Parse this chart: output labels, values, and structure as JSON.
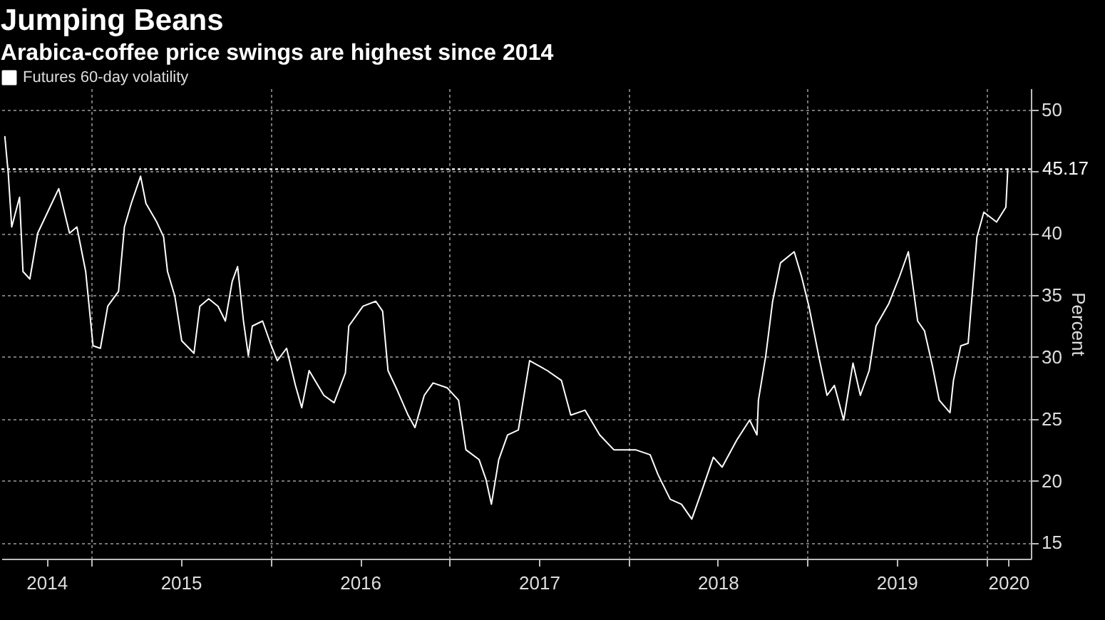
{
  "chart_data": {
    "type": "line",
    "title": "Jumping Beans",
    "subtitle": "Arabica-coffee price swings are highest since 2014",
    "ylabel": "Percent",
    "x": [
      "2014-07-08",
      "2014-07-15",
      "2014-07-22",
      "2014-08-07",
      "2014-08-14",
      "2014-08-28",
      "2014-09-13",
      "2014-10-08",
      "2014-10-26",
      "2014-11-17",
      "2014-12-02",
      "2014-12-20",
      "2015-01-04",
      "2015-01-19",
      "2015-02-03",
      "2015-02-25",
      "2015-03-09",
      "2015-03-23",
      "2015-04-11",
      "2015-04-22",
      "2015-05-14",
      "2015-05-28",
      "2015-06-05",
      "2015-06-20",
      "2015-07-04",
      "2015-07-29",
      "2015-08-10",
      "2015-08-28",
      "2015-09-16",
      "2015-10-01",
      "2015-10-15",
      "2015-10-26",
      "2015-11-07",
      "2015-11-17",
      "2015-11-25",
      "2015-12-16",
      "2016-01-01",
      "2016-01-15",
      "2016-02-03",
      "2016-02-21",
      "2016-03-05",
      "2016-03-20",
      "2016-04-19",
      "2016-05-10",
      "2016-06-02",
      "2016-06-09",
      "2016-07-08",
      "2016-08-03",
      "2016-08-17",
      "2016-08-28",
      "2016-09-16",
      "2016-10-08",
      "2016-10-22",
      "2016-11-10",
      "2016-11-28",
      "2016-12-27",
      "2017-01-19",
      "2017-02-03",
      "2017-03-02",
      "2017-03-16",
      "2017-03-27",
      "2017-04-11",
      "2017-04-29",
      "2017-05-21",
      "2017-06-13",
      "2017-07-19",
      "2017-08-17",
      "2017-09-05",
      "2017-10-04",
      "2017-11-03",
      "2017-12-02",
      "2018-01-15",
      "2018-02-14",
      "2018-03-02",
      "2018-03-27",
      "2018-04-19",
      "2018-05-10",
      "2018-05-28",
      "2018-06-23",
      "2018-07-11",
      "2018-08-10",
      "2018-09-05",
      "2018-09-20",
      "2018-09-23",
      "2018-10-08",
      "2018-10-22",
      "2018-11-07",
      "2018-12-05",
      "2018-12-20",
      "2019-01-04",
      "2019-01-26",
      "2019-02-10",
      "2019-02-25",
      "2019-03-16",
      "2019-04-04",
      "2019-04-19",
      "2019-05-07",
      "2019-05-21",
      "2019-06-16",
      "2019-07-08",
      "2019-07-26",
      "2019-08-14",
      "2019-08-28",
      "2019-09-13",
      "2019-09-27",
      "2019-10-19",
      "2019-10-26",
      "2019-11-10",
      "2019-11-25",
      "2019-12-13",
      "2019-12-27",
      "2020-01-22",
      "2020-02-10",
      "2020-02-14"
    ],
    "series": [
      {
        "name": "Futures 60-day volatility",
        "color": "#ffffff",
        "values": [
          47.8,
          44.8,
          40.5,
          42.9,
          36.9,
          36.3,
          40.0,
          42.1,
          43.6,
          40.0,
          40.5,
          36.9,
          30.9,
          30.7,
          34.1,
          35.3,
          40.5,
          42.4,
          44.6,
          42.4,
          40.9,
          39.7,
          36.9,
          34.9,
          31.3,
          30.3,
          34.1,
          34.7,
          34.1,
          32.9,
          36.1,
          37.3,
          32.9,
          30.1,
          32.5,
          32.9,
          31.1,
          29.7,
          30.7,
          27.7,
          25.9,
          28.9,
          26.9,
          26.3,
          28.7,
          32.5,
          34.1,
          34.5,
          33.7,
          28.9,
          27.3,
          25.3,
          24.3,
          26.9,
          27.9,
          27.5,
          26.5,
          22.5,
          21.7,
          20.1,
          18.1,
          21.7,
          23.7,
          24.1,
          29.7,
          28.9,
          28.1,
          25.3,
          25.7,
          23.7,
          22.5,
          22.5,
          22.1,
          20.5,
          18.5,
          18.1,
          16.9,
          18.9,
          21.9,
          21.1,
          23.3,
          24.9,
          23.7,
          26.5,
          30.1,
          34.5,
          37.6,
          38.5,
          36.5,
          34.1,
          29.7,
          26.9,
          27.7,
          24.9,
          29.5,
          26.9,
          28.9,
          32.5,
          34.3,
          36.5,
          38.5,
          32.9,
          32.1,
          29.3,
          26.5,
          25.5,
          28.1,
          30.9,
          31.1,
          39.7,
          41.7,
          40.9,
          42.1,
          45.2
        ]
      }
    ],
    "xlim": [
      "2014-07-01",
      "2020-04-01"
    ],
    "xticks": [
      {
        "value": "2014-10-01",
        "label": "2014"
      },
      {
        "value": "2015-01-01",
        "label": null
      },
      {
        "value": "2015-07-02",
        "label": "2015"
      },
      {
        "value": "2016-01-01",
        "label": null
      },
      {
        "value": "2016-07-02",
        "label": "2016"
      },
      {
        "value": "2017-01-01",
        "label": null
      },
      {
        "value": "2017-07-02",
        "label": "2017"
      },
      {
        "value": "2018-01-01",
        "label": null
      },
      {
        "value": "2018-07-02",
        "label": "2018"
      },
      {
        "value": "2019-01-01",
        "label": null
      },
      {
        "value": "2019-07-02",
        "label": "2019"
      },
      {
        "value": "2020-01-01",
        "label": null
      },
      {
        "value": "2020-02-15",
        "label": "2020"
      }
    ],
    "ylim": [
      13.7,
      51.7
    ],
    "yticks": [
      15,
      20,
      25,
      30,
      35,
      40,
      {
        "value": 45,
        "label": null
      },
      50
    ],
    "ref_lines": [
      {
        "axis": "y",
        "value": 45.17,
        "label": "45.17",
        "color": "#ffffff",
        "line_style": "dotted"
      }
    ],
    "grid": true,
    "legend": "top left"
  }
}
